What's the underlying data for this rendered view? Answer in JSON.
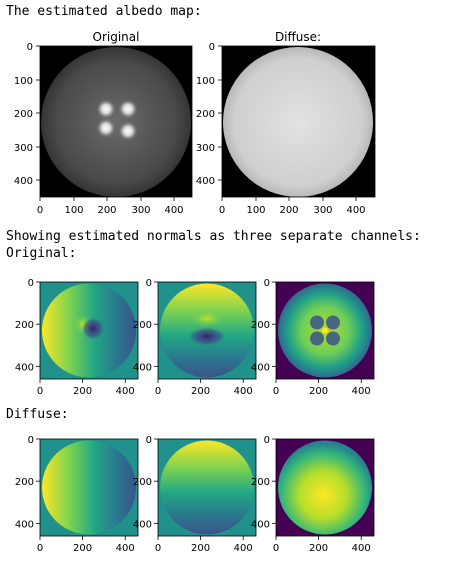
{
  "output": {
    "albedo_header": "The estimated albedo map:",
    "normals_header": "Showing estimated normals as three separate channels:",
    "normals_original_label": "Original:",
    "normals_diffuse_label": "Diffuse:"
  },
  "albedo_plots": {
    "original_title": "Original",
    "diffuse_title": "Diffuse:",
    "y_ticks": [
      "0",
      "100",
      "200",
      "300",
      "400"
    ],
    "x_ticks": [
      "0",
      "100",
      "200",
      "300",
      "400"
    ]
  },
  "normal_plots": {
    "y_ticks": [
      "0",
      "200",
      "400"
    ],
    "x_ticks": [
      "0",
      "200",
      "400"
    ]
  },
  "colors": {
    "viridis_low": "#440154",
    "viridis_mid": "#21918c",
    "viridis_high": "#fde725"
  }
}
